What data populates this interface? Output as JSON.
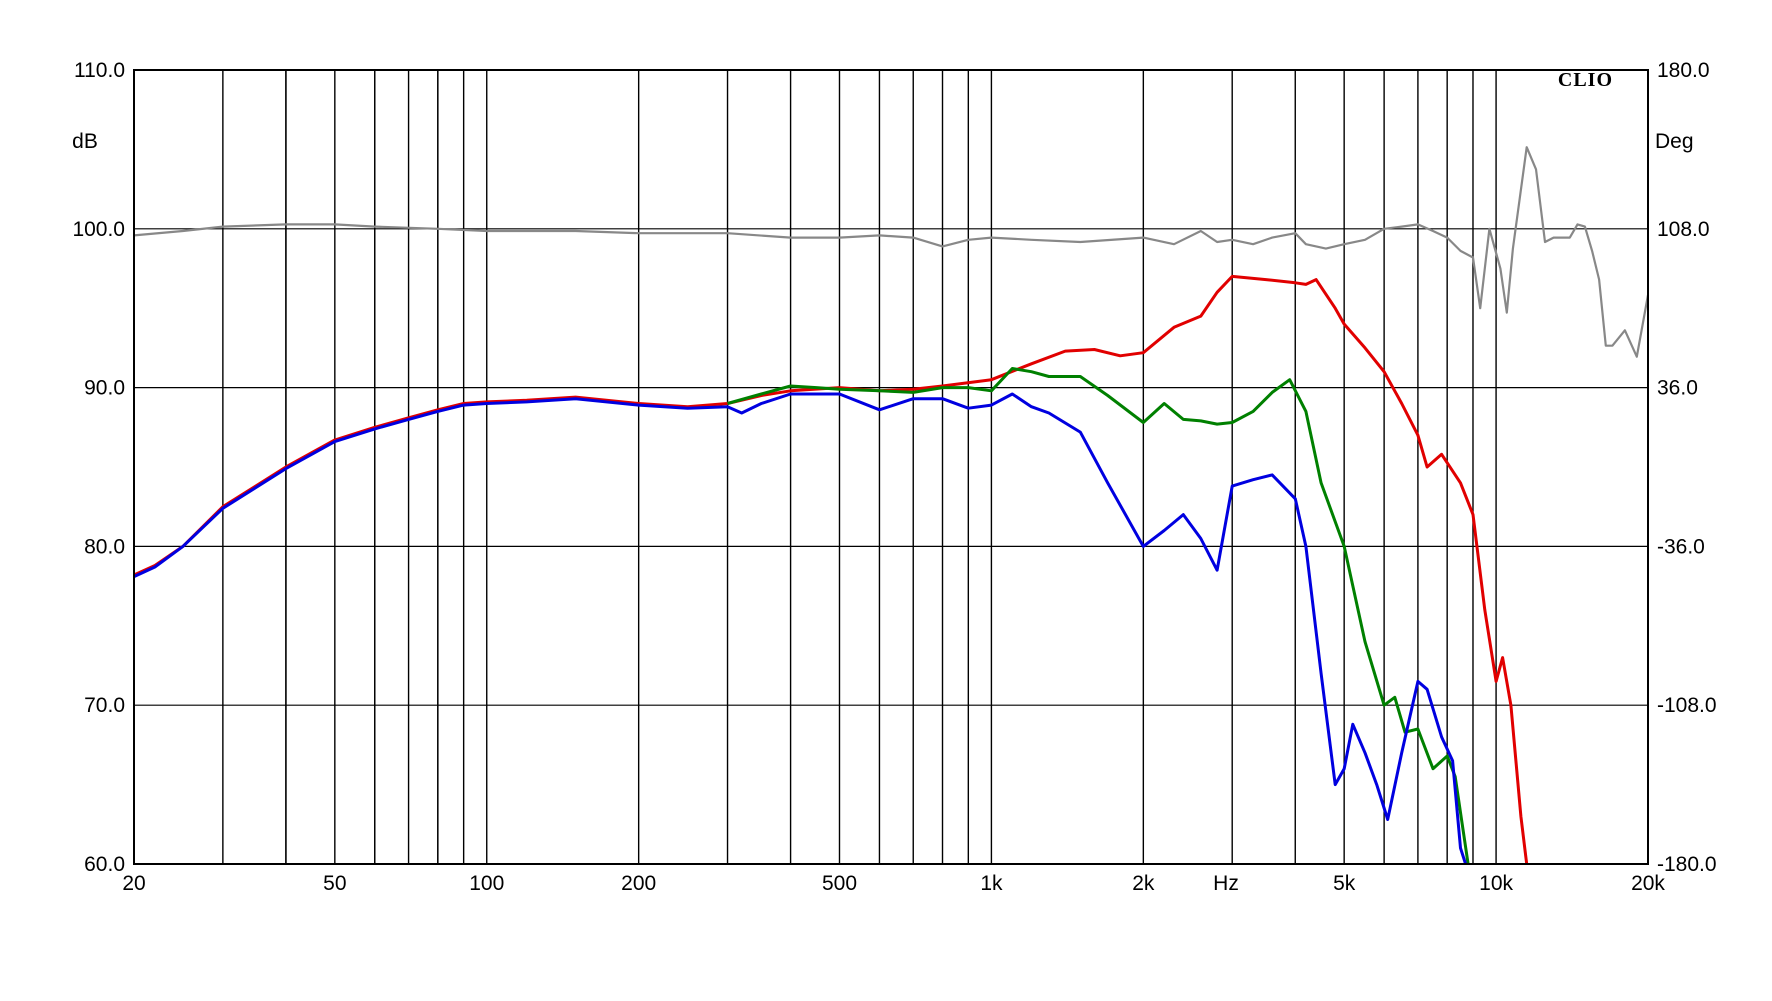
{
  "chart_data": {
    "type": "line",
    "brand": "CLIO",
    "xlabel": "Hz",
    "ylabel_left": "dB",
    "ylabel_right": "Deg",
    "x_scale": "log",
    "xlim": [
      20,
      20000
    ],
    "ylim": [
      60,
      110
    ],
    "ylim_right": [
      -180,
      180
    ],
    "x_tick_labels": [
      {
        "value": 20,
        "label": "20"
      },
      {
        "value": 50,
        "label": "50"
      },
      {
        "value": 100,
        "label": "100"
      },
      {
        "value": 200,
        "label": "200"
      },
      {
        "value": 500,
        "label": "500"
      },
      {
        "value": 1000,
        "label": "1k"
      },
      {
        "value": 2000,
        "label": "2k"
      },
      {
        "value": 5000,
        "label": "5k"
      },
      {
        "value": 10000,
        "label": "10k"
      },
      {
        "value": 20000,
        "label": "20k"
      }
    ],
    "y_ticks_left": [
      "60.0",
      "70.0",
      "80.0",
      "90.0",
      "100.0",
      "110.0"
    ],
    "y_ticks_right": [
      "-180.0",
      "-108.0",
      "-36.0",
      "36.0",
      "108.0",
      "180.0"
    ],
    "grid": true,
    "series": [
      {
        "color": "#888888",
        "axis": "right",
        "points": [
          [
            20,
            105
          ],
          [
            25,
            107
          ],
          [
            30,
            109
          ],
          [
            40,
            110
          ],
          [
            50,
            110
          ],
          [
            60,
            109
          ],
          [
            80,
            108
          ],
          [
            100,
            107
          ],
          [
            150,
            107
          ],
          [
            200,
            106
          ],
          [
            300,
            106
          ],
          [
            400,
            104
          ],
          [
            500,
            104
          ],
          [
            600,
            105
          ],
          [
            700,
            104
          ],
          [
            800,
            100
          ],
          [
            900,
            103
          ],
          [
            1000,
            104
          ],
          [
            1200,
            103
          ],
          [
            1500,
            102
          ],
          [
            2000,
            104
          ],
          [
            2300,
            101
          ],
          [
            2600,
            107
          ],
          [
            2800,
            102
          ],
          [
            3000,
            103
          ],
          [
            3300,
            101
          ],
          [
            3600,
            104
          ],
          [
            4000,
            106
          ],
          [
            4200,
            101
          ],
          [
            4600,
            99
          ],
          [
            5000,
            101
          ],
          [
            5500,
            103
          ],
          [
            6000,
            108
          ],
          [
            6500,
            109
          ],
          [
            7000,
            110
          ],
          [
            7500,
            107
          ],
          [
            8000,
            104
          ],
          [
            8500,
            98
          ],
          [
            9000,
            95
          ],
          [
            9300,
            72
          ],
          [
            9700,
            108
          ],
          [
            10200,
            90
          ],
          [
            10500,
            70
          ],
          [
            10800,
            99
          ],
          [
            11500,
            145
          ],
          [
            12000,
            135
          ],
          [
            12500,
            102
          ],
          [
            13000,
            104
          ],
          [
            14000,
            104
          ],
          [
            14500,
            110
          ],
          [
            15000,
            109
          ],
          [
            15500,
            98
          ],
          [
            16000,
            85
          ],
          [
            16500,
            55
          ],
          [
            17000,
            55
          ],
          [
            18000,
            62
          ],
          [
            19000,
            50
          ],
          [
            20000,
            78
          ]
        ]
      },
      {
        "color": "#e10000",
        "axis": "left",
        "points": [
          [
            20,
            78.2
          ],
          [
            22,
            78.8
          ],
          [
            25,
            80
          ],
          [
            30,
            82.5
          ],
          [
            40,
            85
          ],
          [
            50,
            86.7
          ],
          [
            60,
            87.5
          ],
          [
            70,
            88.1
          ],
          [
            80,
            88.6
          ],
          [
            90,
            89
          ],
          [
            100,
            89.1
          ],
          [
            120,
            89.2
          ],
          [
            150,
            89.4
          ],
          [
            200,
            89
          ],
          [
            250,
            88.8
          ],
          [
            300,
            89
          ],
          [
            350,
            89.5
          ],
          [
            400,
            89.8
          ],
          [
            500,
            90
          ],
          [
            600,
            89.8
          ],
          [
            700,
            89.9
          ],
          [
            800,
            90.1
          ],
          [
            1000,
            90.5
          ],
          [
            1200,
            91.5
          ],
          [
            1400,
            92.3
          ],
          [
            1600,
            92.4
          ],
          [
            1800,
            92
          ],
          [
            2000,
            92.2
          ],
          [
            2300,
            93.8
          ],
          [
            2600,
            94.5
          ],
          [
            2800,
            96
          ],
          [
            3000,
            97
          ],
          [
            3500,
            96.8
          ],
          [
            4000,
            96.6
          ],
          [
            4200,
            96.5
          ],
          [
            4400,
            96.8
          ],
          [
            4800,
            95
          ],
          [
            5000,
            94
          ],
          [
            5500,
            92.5
          ],
          [
            6000,
            91
          ],
          [
            6500,
            89
          ],
          [
            7000,
            87
          ],
          [
            7300,
            85
          ],
          [
            7800,
            85.8
          ],
          [
            8500,
            84
          ],
          [
            9000,
            82
          ],
          [
            9500,
            76
          ],
          [
            10000,
            71.5
          ],
          [
            10300,
            73
          ],
          [
            10700,
            70
          ],
          [
            11200,
            63
          ],
          [
            11500,
            60
          ]
        ]
      },
      {
        "color": "#008000",
        "axis": "left",
        "points": [
          [
            300,
            89
          ],
          [
            350,
            89.6
          ],
          [
            400,
            90.1
          ],
          [
            450,
            90
          ],
          [
            500,
            89.9
          ],
          [
            600,
            89.8
          ],
          [
            700,
            89.7
          ],
          [
            800,
            90
          ],
          [
            900,
            90
          ],
          [
            1000,
            89.8
          ],
          [
            1100,
            91.2
          ],
          [
            1200,
            91
          ],
          [
            1300,
            90.7
          ],
          [
            1500,
            90.7
          ],
          [
            1700,
            89.5
          ],
          [
            2000,
            87.8
          ],
          [
            2200,
            89
          ],
          [
            2400,
            88
          ],
          [
            2600,
            87.9
          ],
          [
            2800,
            87.7
          ],
          [
            3000,
            87.8
          ],
          [
            3300,
            88.5
          ],
          [
            3600,
            89.7
          ],
          [
            3900,
            90.5
          ],
          [
            4200,
            88.5
          ],
          [
            4500,
            84
          ],
          [
            5000,
            80
          ],
          [
            5500,
            74
          ],
          [
            6000,
            70
          ],
          [
            6300,
            70.5
          ],
          [
            6600,
            68.3
          ],
          [
            7000,
            68.5
          ],
          [
            7500,
            66
          ],
          [
            8000,
            66.8
          ],
          [
            8300,
            65.5
          ],
          [
            8800,
            60
          ]
        ]
      },
      {
        "color": "#0000e0",
        "axis": "left",
        "points": [
          [
            20,
            78.1
          ],
          [
            22,
            78.7
          ],
          [
            25,
            80
          ],
          [
            30,
            82.4
          ],
          [
            40,
            84.9
          ],
          [
            50,
            86.6
          ],
          [
            60,
            87.4
          ],
          [
            70,
            88
          ],
          [
            80,
            88.5
          ],
          [
            90,
            88.9
          ],
          [
            100,
            89
          ],
          [
            120,
            89.1
          ],
          [
            150,
            89.3
          ],
          [
            200,
            88.9
          ],
          [
            250,
            88.7
          ],
          [
            300,
            88.8
          ],
          [
            320,
            88.4
          ],
          [
            350,
            89
          ],
          [
            400,
            89.6
          ],
          [
            500,
            89.6
          ],
          [
            600,
            88.6
          ],
          [
            700,
            89.3
          ],
          [
            800,
            89.3
          ],
          [
            900,
            88.7
          ],
          [
            1000,
            88.9
          ],
          [
            1100,
            89.6
          ],
          [
            1200,
            88.8
          ],
          [
            1300,
            88.4
          ],
          [
            1500,
            87.2
          ],
          [
            1700,
            84
          ],
          [
            2000,
            80
          ],
          [
            2200,
            81
          ],
          [
            2400,
            82
          ],
          [
            2600,
            80.5
          ],
          [
            2800,
            78.5
          ],
          [
            3000,
            83.8
          ],
          [
            3300,
            84.2
          ],
          [
            3600,
            84.5
          ],
          [
            4000,
            83
          ],
          [
            4200,
            80
          ],
          [
            4500,
            72
          ],
          [
            4800,
            65
          ],
          [
            5000,
            66
          ],
          [
            5200,
            68.8
          ],
          [
            5500,
            67
          ],
          [
            5800,
            65
          ],
          [
            6100,
            62.8
          ],
          [
            6500,
            67
          ],
          [
            7000,
            71.5
          ],
          [
            7300,
            71
          ],
          [
            7800,
            68
          ],
          [
            8200,
            66.5
          ],
          [
            8500,
            61
          ],
          [
            8700,
            60
          ]
        ]
      }
    ]
  }
}
